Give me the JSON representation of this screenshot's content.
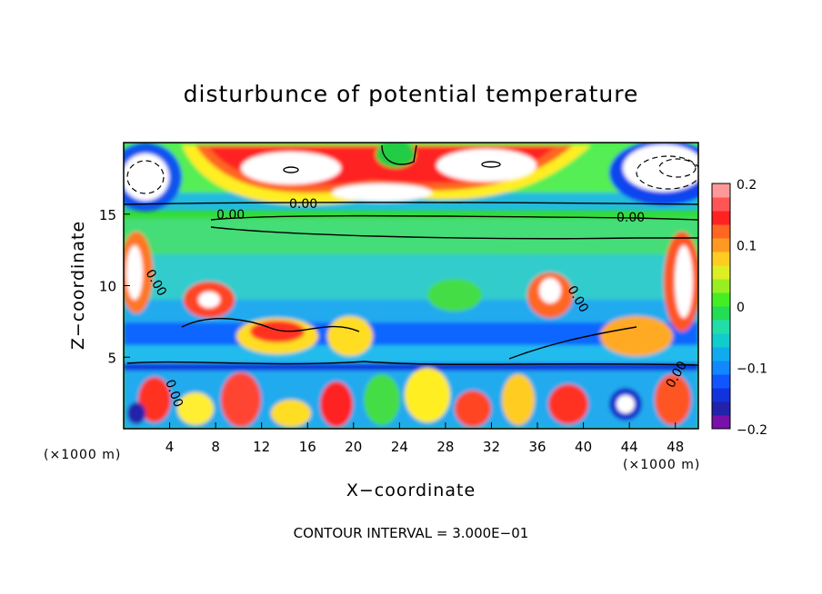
{
  "chart_data": {
    "type": "heatmap",
    "title": "disturbunce of potential temperature",
    "xlabel": "X−coordinate",
    "ylabel": "Z−coordinate",
    "x_unit": "(×1000 m)",
    "x_unit_right": "(×1000 m)",
    "xlim": [
      0,
      50
    ],
    "ylim": [
      0,
      20
    ],
    "x_ticks": [
      4,
      8,
      12,
      16,
      20,
      24,
      28,
      32,
      36,
      40,
      44,
      48
    ],
    "y_ticks": [
      5,
      10,
      15
    ],
    "colorbar": {
      "min": -0.2,
      "max": 0.2,
      "ticks": [
        "0.2",
        "0.1",
        "0",
        "−0.1",
        "−0.2"
      ],
      "tick_values": [
        0.2,
        0.1,
        0,
        -0.1,
        -0.2
      ]
    },
    "contour_labels": [
      "0.00",
      "0.00",
      "0.00",
      "0.00",
      "0.00",
      "0.00",
      "0.00"
    ],
    "contour_interval_text": "CONTOUR INTERVAL = 3.000E−01"
  }
}
